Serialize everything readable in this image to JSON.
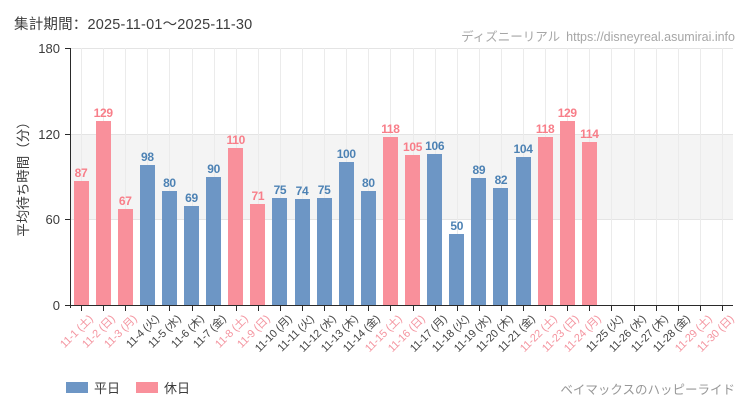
{
  "header": {
    "period_label": "集計期間：2025-11-01～2025-11-30",
    "source_brand": "ディズニーリアル",
    "source_url": "https://disneyreal.asumirai.info"
  },
  "footer": {
    "attraction_name": "ベイマックスのハッピーライド"
  },
  "legend": {
    "items": [
      {
        "key": "weekday",
        "label": "平日"
      },
      {
        "key": "holiday",
        "label": "休日"
      }
    ]
  },
  "chart_data": {
    "type": "bar",
    "title": "",
    "ylabel": "平均待ち時間（分）",
    "xlabel": "",
    "ylim": [
      0,
      180
    ],
    "yticks": [
      0,
      60,
      120,
      180
    ],
    "shaded_band": {
      "from": 60,
      "to": 120
    },
    "grid": "vertical-at-category-centers",
    "legend_position": "bottom-left",
    "colors": {
      "weekday_bar": "#6d96c5",
      "holiday_bar": "#f9909b",
      "weekday_value_label": "#4d82b4",
      "holiday_value_label": "#f87e89",
      "weekday_axis_label": "#454545",
      "holiday_axis_label": "#f495a0",
      "band": "#f4f4f4"
    },
    "categories": [
      {
        "label": "11-1 (土)",
        "day": "holiday",
        "value": 87
      },
      {
        "label": "11-2 (日)",
        "day": "holiday",
        "value": 129
      },
      {
        "label": "11-3 (月)",
        "day": "holiday",
        "value": 67
      },
      {
        "label": "11-4 (火)",
        "day": "weekday",
        "value": 98
      },
      {
        "label": "11-5 (水)",
        "day": "weekday",
        "value": 80
      },
      {
        "label": "11-6 (木)",
        "day": "weekday",
        "value": 69
      },
      {
        "label": "11-7 (金)",
        "day": "weekday",
        "value": 90
      },
      {
        "label": "11-8 (土)",
        "day": "holiday",
        "value": 110
      },
      {
        "label": "11-9 (日)",
        "day": "holiday",
        "value": 71
      },
      {
        "label": "11-10 (月)",
        "day": "weekday",
        "value": 75
      },
      {
        "label": "11-11 (火)",
        "day": "weekday",
        "value": 74
      },
      {
        "label": "11-12 (水)",
        "day": "weekday",
        "value": 75
      },
      {
        "label": "11-13 (木)",
        "day": "weekday",
        "value": 100
      },
      {
        "label": "11-14 (金)",
        "day": "weekday",
        "value": 80
      },
      {
        "label": "11-15 (土)",
        "day": "holiday",
        "value": 118
      },
      {
        "label": "11-16 (日)",
        "day": "holiday",
        "value": 105
      },
      {
        "label": "11-17 (月)",
        "day": "weekday",
        "value": 106
      },
      {
        "label": "11-18 (火)",
        "day": "weekday",
        "value": 50
      },
      {
        "label": "11-19 (水)",
        "day": "weekday",
        "value": 89
      },
      {
        "label": "11-20 (木)",
        "day": "weekday",
        "value": 82
      },
      {
        "label": "11-21 (金)",
        "day": "weekday",
        "value": 104
      },
      {
        "label": "11-22 (土)",
        "day": "holiday",
        "value": 118
      },
      {
        "label": "11-23 (日)",
        "day": "holiday",
        "value": 129
      },
      {
        "label": "11-24 (月)",
        "day": "holiday",
        "value": 114
      },
      {
        "label": "11-25 (火)",
        "day": "weekday",
        "value": null
      },
      {
        "label": "11-26 (水)",
        "day": "weekday",
        "value": null
      },
      {
        "label": "11-27 (木)",
        "day": "weekday",
        "value": null
      },
      {
        "label": "11-28 (金)",
        "day": "weekday",
        "value": null
      },
      {
        "label": "11-29 (土)",
        "day": "holiday",
        "value": null
      },
      {
        "label": "11-30 (日)",
        "day": "holiday",
        "value": null
      }
    ]
  }
}
